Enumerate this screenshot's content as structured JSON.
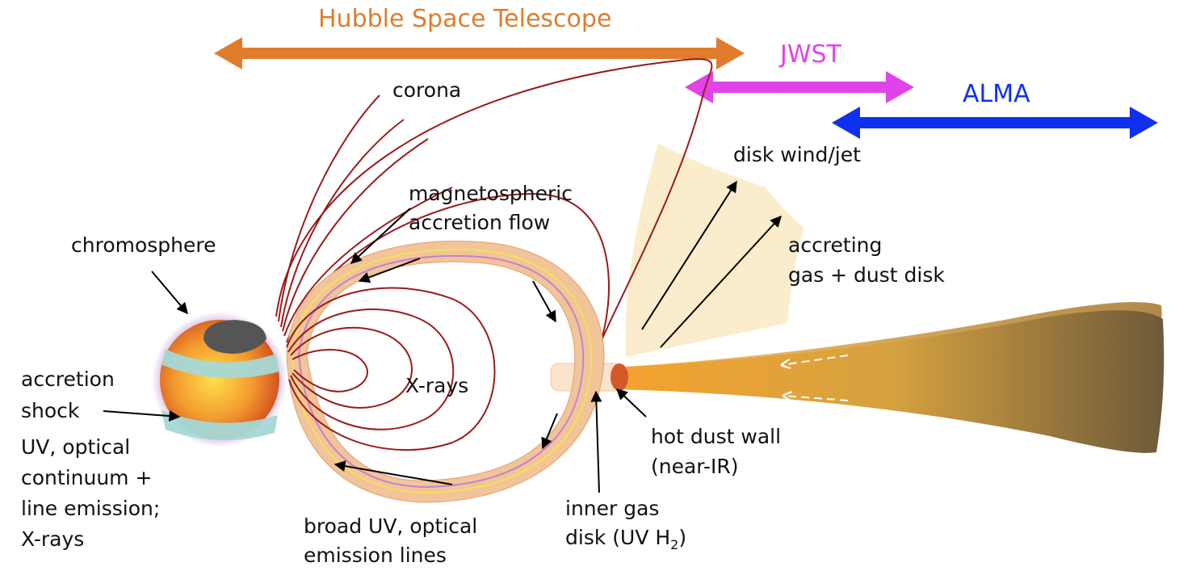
{
  "telescopes": {
    "hst": {
      "label": "Hubble Space Telescope",
      "color": "#e07d2c"
    },
    "jwst": {
      "label": "JWST",
      "color": "#e044e8"
    },
    "alma": {
      "label": "ALMA",
      "color": "#1030f0"
    }
  },
  "labels": {
    "corona": "corona",
    "disk_wind": "disk wind/jet",
    "magnetospheric_1": "magnetospheric",
    "magnetospheric_2": "accretion flow",
    "chromosphere": "chromosphere",
    "accreting_1": "accreting",
    "accreting_2": "gas + dust disk",
    "accretion_1": "accretion",
    "accretion_2": "shock",
    "xrays_center": "X-rays",
    "uv_1": "UV, optical",
    "uv_2": "continuum +",
    "uv_3": "line emission;",
    "uv_4": "X-rays",
    "hot_dust_1": "hot dust wall",
    "hot_dust_2": "(near-IR)",
    "inner_gas_1": "inner gas",
    "inner_gas_2": "disk (UV H",
    "inner_gas_sub": "2",
    "inner_gas_close": ")",
    "broad_1": "broad UV, optical",
    "broad_2": "emission lines"
  },
  "colors": {
    "field_line": "#9b1b1b",
    "accretion_band": "#f2c49a",
    "band_line_yellow": "#f5e05a",
    "band_line_purple": "#c283c9",
    "star_core": "#ffd23c",
    "star_edge": "#d9491c",
    "star_halo": "#c9a3dc",
    "shock_band": "#a5d8d6",
    "starspot": "#555555",
    "wind_cone": "#fbeccb",
    "disk_light": "#f0a030",
    "disk_dark": "#6e5a3c"
  }
}
